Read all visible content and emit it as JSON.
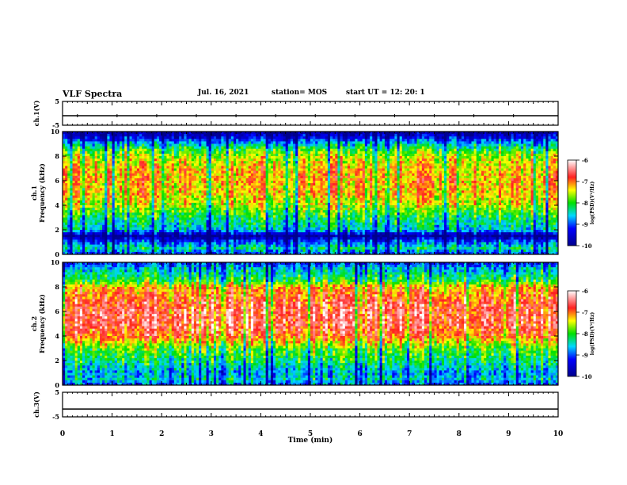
{
  "header": {
    "title": "VLF Spectra",
    "date": "Jul. 16, 2021",
    "station": "station= MOS",
    "start": "start UT = 12: 20: 1"
  },
  "chart_data": [
    {
      "type": "line",
      "name": "ch1-voltage",
      "ylabel": "ch.1(V)",
      "ylim": [
        -5,
        5
      ],
      "yticks": [
        5,
        -5
      ],
      "x": [
        0,
        10
      ],
      "values": [
        -1,
        -1
      ],
      "xlim": [
        0,
        10
      ]
    },
    {
      "type": "heatmap",
      "name": "ch1-spectrogram",
      "ylabel": "ch.1\nFrequency (kHz)",
      "ylim": [
        0,
        10
      ],
      "yticks": [
        0,
        2,
        4,
        6,
        8,
        10
      ],
      "xlim": [
        0,
        10
      ],
      "colorbar": {
        "label": "log(PSD)(V²/Hz)",
        "range": [
          -10,
          -6
        ],
        "ticks": [
          -6,
          -7,
          -8,
          -9,
          -10
        ]
      },
      "profile_freq_khz": [
        0,
        0.5,
        1,
        1.5,
        2,
        3,
        4,
        5,
        6,
        7,
        8,
        8.5,
        9,
        9.5,
        10
      ],
      "profile_log_psd": [
        -9.2,
        -8.4,
        -9.0,
        -10.0,
        -8.6,
        -8.2,
        -7.6,
        -7.3,
        -7.2,
        -7.3,
        -7.6,
        -8.0,
        -8.6,
        -9.4,
        -10.0
      ]
    },
    {
      "type": "heatmap",
      "name": "ch2-spectrogram",
      "ylabel": "ch.2\nFrequency (kHz)",
      "ylim": [
        0,
        10
      ],
      "yticks": [
        0,
        2,
        4,
        6,
        8,
        10
      ],
      "xlim": [
        0,
        10
      ],
      "colorbar": {
        "label": "log(PSD)(V²/Hz)",
        "range": [
          -10,
          -6
        ],
        "ticks": [
          -6,
          -7,
          -8,
          -9,
          -10
        ]
      },
      "profile_freq_khz": [
        0,
        0.5,
        1,
        2,
        3,
        4,
        5,
        6,
        7,
        8,
        8.5,
        9,
        9.5,
        10
      ],
      "profile_log_psd": [
        -9.0,
        -8.5,
        -8.7,
        -8.2,
        -7.8,
        -6.9,
        -6.6,
        -6.6,
        -6.8,
        -7.2,
        -8.0,
        -8.3,
        -8.6,
        -9.2
      ]
    },
    {
      "type": "line",
      "name": "ch3-voltage",
      "ylabel": "ch.3(V)",
      "ylim": [
        -5,
        5
      ],
      "yticks": [
        5,
        -5
      ],
      "x": [
        0,
        10
      ],
      "values": [
        -1.8,
        -1.8
      ],
      "xlim": [
        0,
        10
      ]
    }
  ],
  "xaxis": {
    "label": "Time (min)",
    "ticks": [
      "0",
      "1",
      "2",
      "3",
      "4",
      "5",
      "6",
      "7",
      "8",
      "9",
      "10"
    ],
    "range": [
      0,
      10
    ]
  }
}
